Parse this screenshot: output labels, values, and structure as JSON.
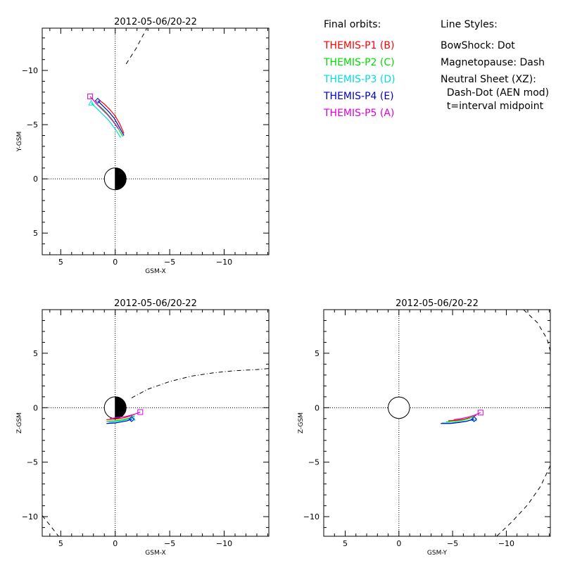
{
  "legend": {
    "heading": "Final orbits:",
    "probes": [
      {
        "label": "THEMIS-P1 (B)",
        "color": "#ff0000"
      },
      {
        "label": "THEMIS-P2 (C)",
        "color": "#00dd00"
      },
      {
        "label": "THEMIS-P3 (D)",
        "color": "#00dddd"
      },
      {
        "label": "THEMIS-P4 (E)",
        "color": "#0000cc"
      },
      {
        "label": "THEMIS-P5 (A)",
        "color": "#dd00dd"
      }
    ]
  },
  "line_styles": {
    "heading": "Line Styles:",
    "lines": [
      "BowShock: Dot",
      "Magnetopause: Dash",
      "Neutral Sheet (XZ):",
      "  Dash-Dot (AEN mod)",
      "  t=interval midpoint"
    ]
  },
  "chart_data": [
    {
      "type": "line",
      "title": "2012-05-06/20-22",
      "xlabel": "GSM-X",
      "ylabel": "Y-GSM",
      "xlim": [
        6.7,
        -14.1
      ],
      "ylim": [
        7,
        -13.9
      ],
      "xticks": [
        5,
        0,
        -5,
        -10
      ],
      "yticks": [
        5,
        0,
        -5,
        -10
      ],
      "earth": {
        "center": [
          0,
          0
        ],
        "radius": 1,
        "night_side_filled": true
      },
      "crosshair": [
        0,
        0
      ],
      "boundaries": [
        {
          "name": "magnetopause",
          "style": "dash",
          "x": [
            -1.0,
            -1.9,
            -2.9
          ],
          "y": [
            -10.6,
            -12.0,
            -13.9
          ]
        }
      ],
      "series": [
        {
          "color": "#ff0000",
          "x": [
            -0.8,
            -0.4,
            0.0,
            0.5,
            1.0,
            1.5
          ],
          "y": [
            -4.2,
            -5.1,
            -5.8,
            -6.4,
            -6.9,
            -7.3
          ]
        },
        {
          "color": "#00dd00",
          "x": [
            -0.7,
            -0.2,
            0.3,
            0.8,
            1.3,
            1.8
          ],
          "y": [
            -3.9,
            -4.8,
            -5.5,
            -6.1,
            -6.6,
            -7.0
          ]
        },
        {
          "color": "#00dddd",
          "x": [
            -0.5,
            0.0,
            0.6,
            1.2,
            1.8,
            2.2
          ],
          "y": [
            -3.8,
            -4.6,
            -5.4,
            -6.0,
            -6.6,
            -7.0
          ],
          "end_marker": "triangle"
        },
        {
          "color": "#0000cc",
          "x": [
            -0.8,
            -0.3,
            0.1,
            0.6,
            1.2,
            1.6
          ],
          "y": [
            -4.0,
            -4.9,
            -5.6,
            -6.2,
            -6.8,
            -7.2
          ],
          "end_marker": "diamond"
        },
        {
          "color": "#dd00dd",
          "x": [
            -0.3,
            0.2,
            0.7,
            1.2,
            1.7,
            2.3
          ],
          "y": [
            -4.6,
            -5.3,
            -5.9,
            -6.4,
            -6.9,
            -7.6
          ],
          "end_marker": "square"
        }
      ]
    },
    {
      "type": "line",
      "title": "2012-05-06/20-22",
      "xlabel": "GSM-X",
      "ylabel": "Z-GSM",
      "xlim": [
        6.7,
        -14.1
      ],
      "ylim": [
        -11.8,
        9.0
      ],
      "xticks": [
        5,
        0,
        -5,
        -10
      ],
      "yticks": [
        5,
        0,
        -5,
        -10
      ],
      "earth": {
        "center": [
          0,
          0
        ],
        "radius": 1,
        "night_side_filled": true
      },
      "crosshair": [
        0,
        0
      ],
      "boundaries": [
        {
          "name": "neutral sheet",
          "style": "dash-dot",
          "x": [
            -1.5,
            -3,
            -5,
            -7,
            -9,
            -11,
            -13,
            -14.1
          ],
          "y": [
            0.9,
            1.7,
            2.4,
            2.9,
            3.2,
            3.4,
            3.5,
            3.6
          ]
        },
        {
          "name": "magnetopause",
          "style": "dash",
          "x": [
            6.7,
            5.9,
            5.2
          ],
          "y": [
            -9.9,
            -10.9,
            -11.8
          ]
        }
      ],
      "series": [
        {
          "color": "#ff0000",
          "x": [
            0.8,
            0.0,
            -0.7,
            -1.3,
            -1.8
          ],
          "y": [
            -1.1,
            -1.05,
            -0.95,
            -0.8,
            -0.6
          ]
        },
        {
          "color": "#00dd00",
          "x": [
            0.8,
            0.0,
            -0.7,
            -1.3,
            -1.8
          ],
          "y": [
            -1.25,
            -1.2,
            -1.1,
            -0.95,
            -0.75
          ]
        },
        {
          "color": "#00dddd",
          "x": [
            0.6,
            0.0,
            -0.6,
            -1.1,
            -1.6
          ],
          "y": [
            -1.35,
            -1.3,
            -1.2,
            -1.1,
            -0.95
          ],
          "end_marker": "triangle"
        },
        {
          "color": "#0000cc",
          "x": [
            0.8,
            0.0,
            -0.6,
            -1.1,
            -1.5
          ],
          "y": [
            -1.45,
            -1.4,
            -1.3,
            -1.2,
            -1.05
          ],
          "end_marker": "diamond"
        },
        {
          "color": "#dd00dd",
          "x": [
            0.5,
            -0.3,
            -1.0,
            -1.6,
            -2.3
          ],
          "y": [
            -1.0,
            -0.9,
            -0.8,
            -0.65,
            -0.4
          ],
          "end_marker": "square"
        }
      ]
    },
    {
      "type": "line",
      "title": "2012-05-06/20-22",
      "xlabel": "GSM-Y",
      "ylabel": "Z-GSM",
      "xlim": [
        7.0,
        -14.1
      ],
      "ylim": [
        -11.8,
        9.0
      ],
      "xticks": [
        5,
        0,
        -5,
        -10
      ],
      "yticks": [
        5,
        0,
        -5,
        -10
      ],
      "earth": {
        "center": [
          0,
          0
        ],
        "radius": 1,
        "night_side_filled": false
      },
      "crosshair": [
        0,
        0
      ],
      "boundaries": [
        {
          "name": "magnetopause",
          "style": "dash",
          "x": [
            -11.6,
            -12.9,
            -13.8,
            -14.1
          ],
          "y": [
            9.0,
            7.8,
            6.3,
            5.2
          ]
        },
        {
          "name": "magnetopause",
          "style": "dash",
          "x": [
            -14.1,
            -13.2,
            -12.0,
            -10.5,
            -9.1
          ],
          "y": [
            -5.3,
            -7.2,
            -8.9,
            -10.5,
            -11.8
          ]
        }
      ],
      "series": [
        {
          "color": "#ff0000",
          "x": [
            -4.6,
            -5.4,
            -6.1,
            -6.7,
            -7.2
          ],
          "y": [
            -1.2,
            -1.15,
            -1.05,
            -0.9,
            -0.7
          ]
        },
        {
          "color": "#00dd00",
          "x": [
            -4.4,
            -5.2,
            -5.9,
            -6.5,
            -7.0
          ],
          "y": [
            -1.3,
            -1.25,
            -1.15,
            -1.0,
            -0.8
          ]
        },
        {
          "color": "#00dddd",
          "x": [
            -4.0,
            -4.9,
            -5.7,
            -6.4,
            -7.0
          ],
          "y": [
            -1.4,
            -1.4,
            -1.3,
            -1.2,
            -1.0
          ],
          "end_marker": "triangle"
        },
        {
          "color": "#0000cc",
          "x": [
            -3.9,
            -4.8,
            -5.6,
            -6.3,
            -7.0
          ],
          "y": [
            -1.45,
            -1.45,
            -1.35,
            -1.25,
            -1.05
          ],
          "end_marker": "diamond"
        },
        {
          "color": "#dd00dd",
          "x": [
            -5.1,
            -5.8,
            -6.5,
            -7.0,
            -7.6
          ],
          "y": [
            -1.1,
            -1.0,
            -0.85,
            -0.7,
            -0.45
          ],
          "end_marker": "square"
        }
      ]
    }
  ]
}
